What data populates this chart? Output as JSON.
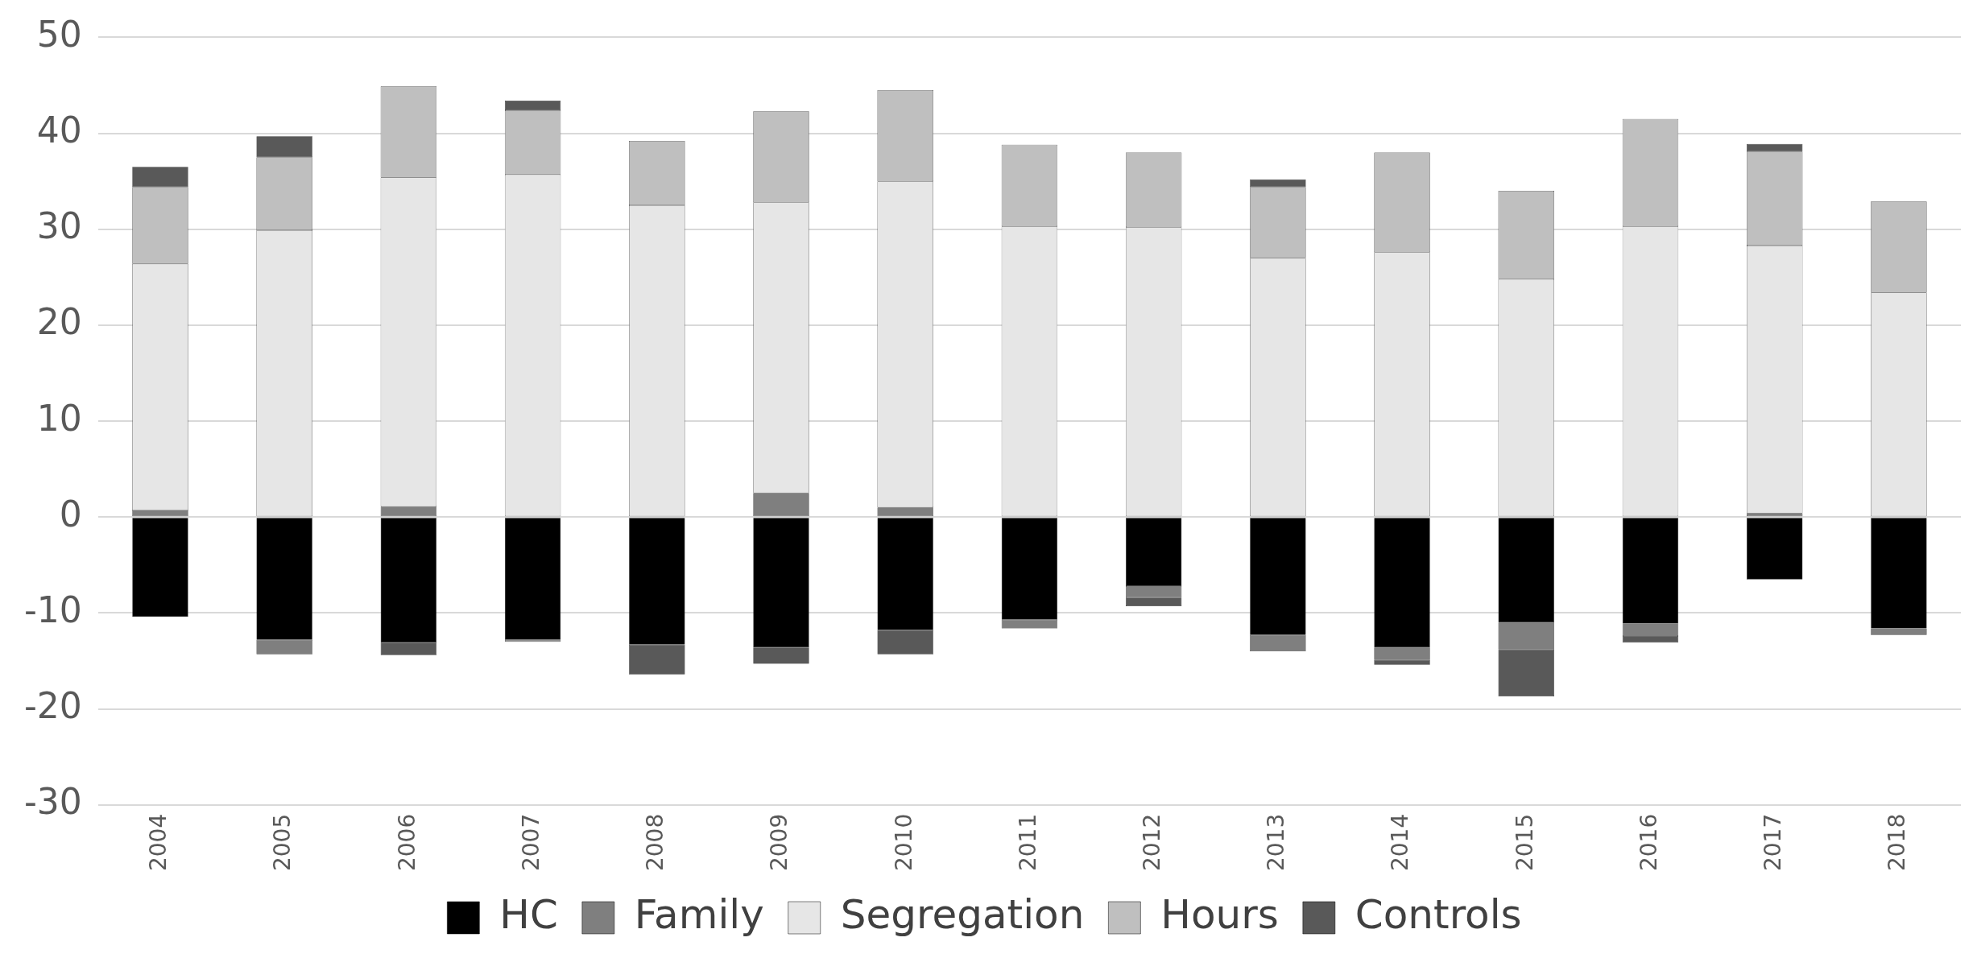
{
  "chart_data": {
    "type": "bar",
    "stacked": true,
    "categories": [
      "2004",
      "2005",
      "2006",
      "2007",
      "2008",
      "2009",
      "2010",
      "2011",
      "2012",
      "2013",
      "2014",
      "2015",
      "2016",
      "2017",
      "2018"
    ],
    "series": [
      {
        "name": "HC",
        "color": "#000000",
        "values": [
          -10.4,
          -12.8,
          -13.1,
          -12.8,
          -13.3,
          -13.6,
          -11.8,
          -10.7,
          -7.2,
          -12.3,
          -13.6,
          -11.0,
          -11.1,
          -6.5,
          -11.6
        ]
      },
      {
        "name": "Family",
        "color": "#7f7f7f",
        "values": [
          0.7,
          -1.5,
          1.1,
          -0.2,
          null,
          2.5,
          1.0,
          -0.9,
          -1.2,
          -1.7,
          -1.3,
          -2.8,
          -1.3,
          0.4,
          -0.7
        ]
      },
      {
        "name": "Segregation",
        "color": "#e6e6e6",
        "values": [
          25.7,
          29.9,
          34.3,
          35.7,
          32.5,
          30.3,
          34.0,
          30.3,
          30.2,
          27.0,
          27.6,
          24.8,
          30.3,
          27.9,
          23.4
        ]
      },
      {
        "name": "Hours",
        "color": "#bfbfbf",
        "values": [
          8.0,
          7.6,
          9.5,
          6.7,
          6.7,
          9.5,
          9.5,
          8.5,
          7.8,
          7.4,
          10.4,
          9.2,
          11.2,
          9.8,
          9.5
        ]
      },
      {
        "name": "Controls",
        "color": "#595959",
        "values": [
          2.1,
          2.2,
          -1.3,
          1.0,
          -3.1,
          -1.7,
          -2.5,
          null,
          -0.9,
          0.8,
          -0.5,
          -4.9,
          -0.7,
          0.8,
          null
        ]
      }
    ],
    "ylim": [
      -30,
      50
    ],
    "yticks": [
      -30,
      -20,
      -10,
      0,
      10,
      20,
      30,
      40,
      50
    ],
    "grid": "y",
    "legend": "bottom"
  }
}
